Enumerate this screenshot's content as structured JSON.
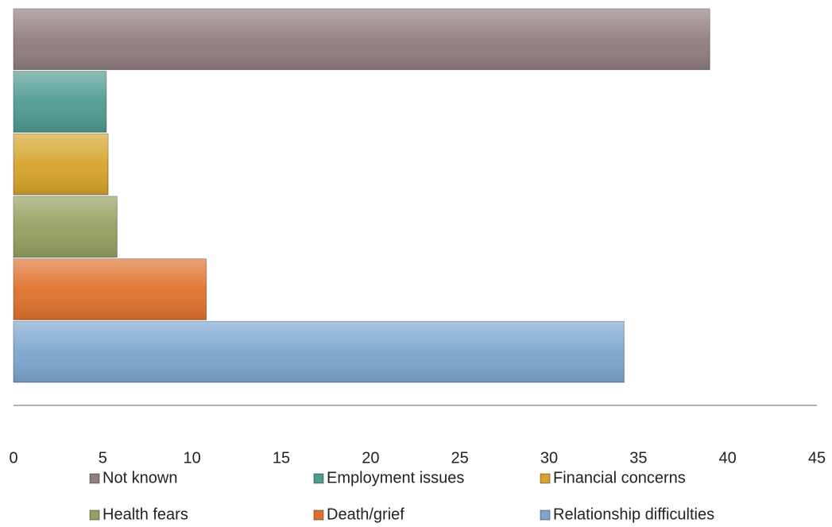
{
  "chart_data": {
    "type": "bar",
    "orientation": "horizontal",
    "series": [
      {
        "name": "Not known",
        "color": "#917e7f",
        "values": [
          39
        ]
      },
      {
        "name": "Employment issues",
        "color": "#4f9b90",
        "values": [
          5.2
        ]
      },
      {
        "name": "Financial concerns",
        "color": "#d6a42c",
        "values": [
          5.3
        ]
      },
      {
        "name": "Health fears",
        "color": "#94a05e",
        "values": [
          5.8
        ]
      },
      {
        "name": "Death/grief",
        "color": "#e0712c",
        "values": [
          10.8
        ]
      },
      {
        "name": "Relationship difficulties",
        "color": "#7ca6cf",
        "values": [
          34.2
        ]
      }
    ],
    "xlim": [
      0,
      45
    ],
    "xticks": [
      0,
      5,
      10,
      15,
      20,
      25,
      30,
      35,
      40,
      45
    ],
    "grid": false,
    "legend": "bottom"
  }
}
